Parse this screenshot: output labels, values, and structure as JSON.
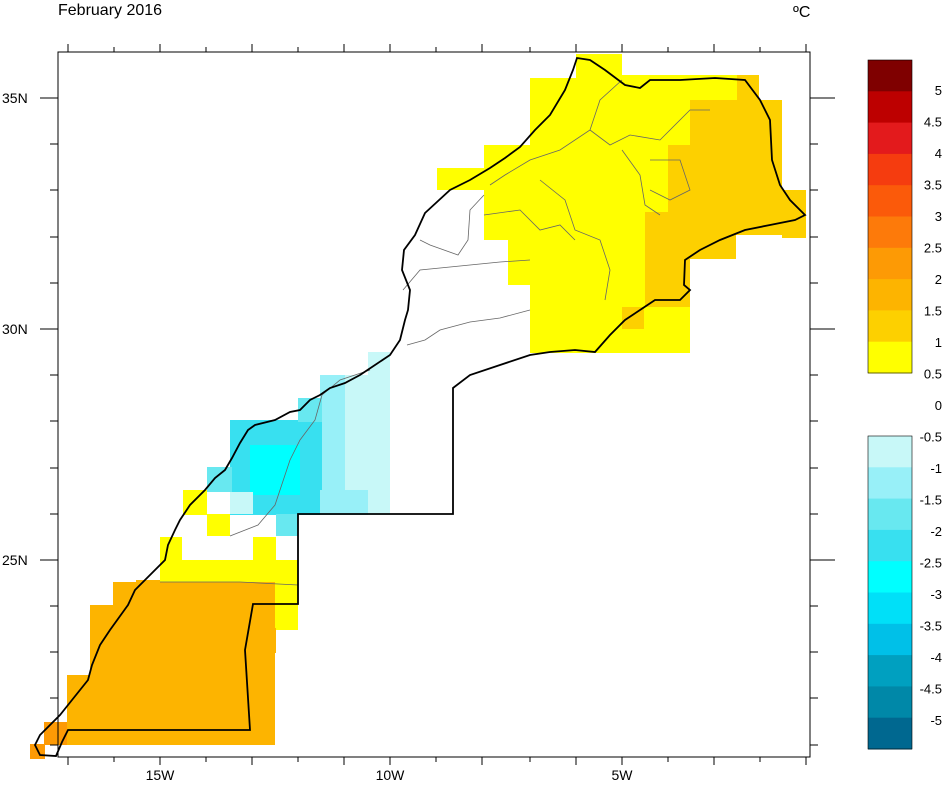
{
  "title": "February 2016",
  "units": "ºC",
  "x_ticks": [
    "15W",
    "10W",
    "5W"
  ],
  "y_ticks": [
    "35N",
    "30N",
    "25N"
  ],
  "colorbar": {
    "labels": [
      "5",
      "4.5",
      "4",
      "3.5",
      "3",
      "2.5",
      "2",
      "1.5",
      "1",
      "0.5",
      "0",
      "-0.5",
      "-1",
      "-1.5",
      "-2",
      "-2.5",
      "-3",
      "-3.5",
      "-4",
      "-4.5",
      "-5"
    ],
    "warm_colors": [
      "#7f0000",
      "#bd0000",
      "#e31a1c",
      "#f53c0f",
      "#fb5a0a",
      "#fd7a0a",
      "#fd9a05",
      "#fdb400",
      "#fdd000",
      "#ffff00"
    ],
    "cool_colors": [
      "#c8f8f8",
      "#98f0f8",
      "#68e8f0",
      "#38e0f0",
      "#00ffff",
      "#00e0f8",
      "#00c0e8",
      "#00a0c0",
      "#0088a8",
      "#006890"
    ]
  },
  "chart_data": {
    "type": "heatmap",
    "title": "February 2016",
    "units": "ºC",
    "xlim": [
      -17.2,
      -0.8
    ],
    "ylim": [
      20.7,
      36.1
    ],
    "x_tick_values": [
      -15,
      -10,
      -5
    ],
    "y_tick_values": [
      35,
      30,
      25
    ],
    "regions": [
      {
        "range": "0.5 to 1",
        "lon": [
          -7.0,
          -4.0
        ],
        "lat": [
          29.5,
          35.9
        ]
      },
      {
        "range": "0.5 to 1",
        "lon": [
          -8.0,
          -7.0
        ],
        "lat": [
          31.5,
          34.0
        ]
      },
      {
        "range": "0.5 to 1",
        "lon": [
          -9.0,
          -8.0
        ],
        "lat": [
          32.8,
          33.4
        ]
      },
      {
        "range": "1 to 1.5",
        "lon": [
          -4.0,
          -1.0
        ],
        "lat": [
          32.0,
          35.0
        ]
      },
      {
        "range": "1 to 1.5",
        "lon": [
          -4.0,
          -3.0
        ],
        "lat": [
          30.5,
          32.0
        ]
      },
      {
        "range": "-0.5 to -1",
        "lon": [
          -11.0,
          -10.0
        ],
        "lat": [
          26.0,
          29.0
        ]
      },
      {
        "range": "-2 to -2.5",
        "lon": [
          -13.5,
          -11.0
        ],
        "lat": [
          26.0,
          28.0
        ]
      },
      {
        "range": "0.5 to 1",
        "lon": [
          -15.0,
          -12.0
        ],
        "lat": [
          24.0,
          25.5
        ]
      },
      {
        "range": "1.5 to 2",
        "lon": [
          -16.5,
          -13.0
        ],
        "lat": [
          21.0,
          24.0
        ]
      },
      {
        "range": "2 to 2.5",
        "lon": [
          -17.0,
          -16.5
        ],
        "lat": [
          20.8,
          21.5
        ]
      }
    ]
  }
}
